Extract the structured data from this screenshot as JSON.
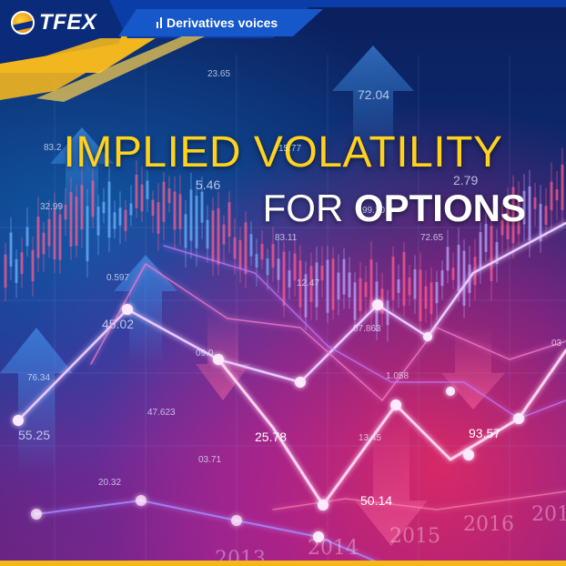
{
  "brand": {
    "logo_text": "TFEX",
    "section_label": "Derivatives voices"
  },
  "title": {
    "line1": "IMPLIED VOLATILITY",
    "line2_prefix": "FOR ",
    "line2_bold": "OPTIONS"
  },
  "numbers": {
    "n1": "83.2",
    "n2": "23.65",
    "n3": "72.04",
    "n4": "15.77",
    "n5": "5.46",
    "n6": "2.79",
    "n7": "32.99",
    "n8": "99.10",
    "n9": "83.11",
    "n10": "72.65",
    "n11": "0.597",
    "n12": "12.47",
    "n13": "45.02",
    "n14": "07.863",
    "n15": "76.34",
    "n16": "09.0",
    "n17": "1.058",
    "n18": "03",
    "n19": "47.623",
    "n20": "55.25",
    "n21": "25.78",
    "n22": "13.45",
    "n23": "93.57",
    "n24": "03.71",
    "n25": "20.32",
    "n26": "50.14"
  },
  "years": [
    "2013",
    "2014",
    "2015",
    "2016",
    "2017"
  ],
  "colors": {
    "gold": "#ffd21f",
    "accent_bar": "#f5b81a",
    "brand_blue": "#0b2f88"
  }
}
